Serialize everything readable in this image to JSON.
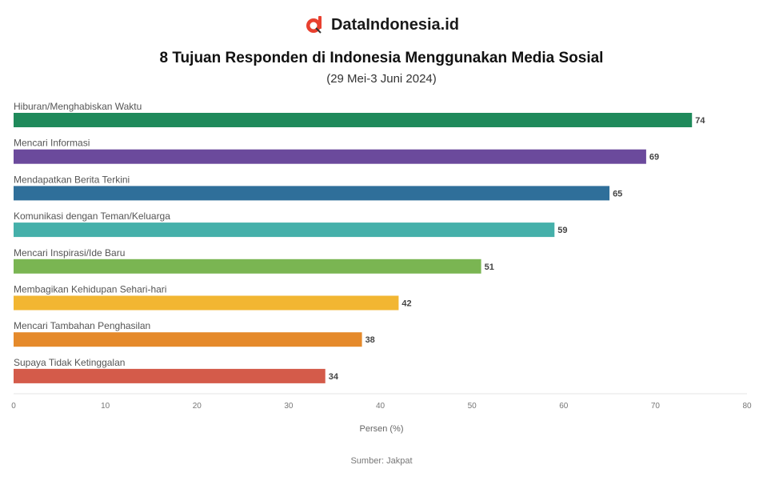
{
  "brand": {
    "name": "DataIndonesia.id",
    "logo_icon": "dataindonesia-logo-icon",
    "logo_color": "#e8402f"
  },
  "chart_data": {
    "type": "bar",
    "orientation": "horizontal",
    "title": "8 Tujuan Responden di Indonesia Menggunakan Media Sosial",
    "subtitle": "(29 Mei-3 Juni 2024)",
    "categories": [
      "Hiburan/Menghabiskan Waktu",
      "Mencari Informasi",
      "Mendapatkan Berita Terkini",
      "Komunikasi dengan Teman/Keluarga",
      "Mencari Inspirasi/Ide Baru",
      "Membagikan Kehidupan Sehari-hari",
      "Mencari Tambahan Penghasilan",
      "Supaya Tidak Ketinggalan"
    ],
    "values": [
      74,
      69,
      65,
      59,
      51,
      42,
      38,
      34
    ],
    "colors": [
      "#1f8a5b",
      "#6b4a9c",
      "#2f6f9a",
      "#45b0aa",
      "#7ab552",
      "#f2b632",
      "#e58a2b",
      "#d45b4a"
    ],
    "xlim": [
      0,
      80
    ],
    "xticks": [
      0,
      10,
      20,
      30,
      40,
      50,
      60,
      70,
      80
    ],
    "xlabel": "Persen (%)",
    "source": "Sumber: Jakpat"
  }
}
